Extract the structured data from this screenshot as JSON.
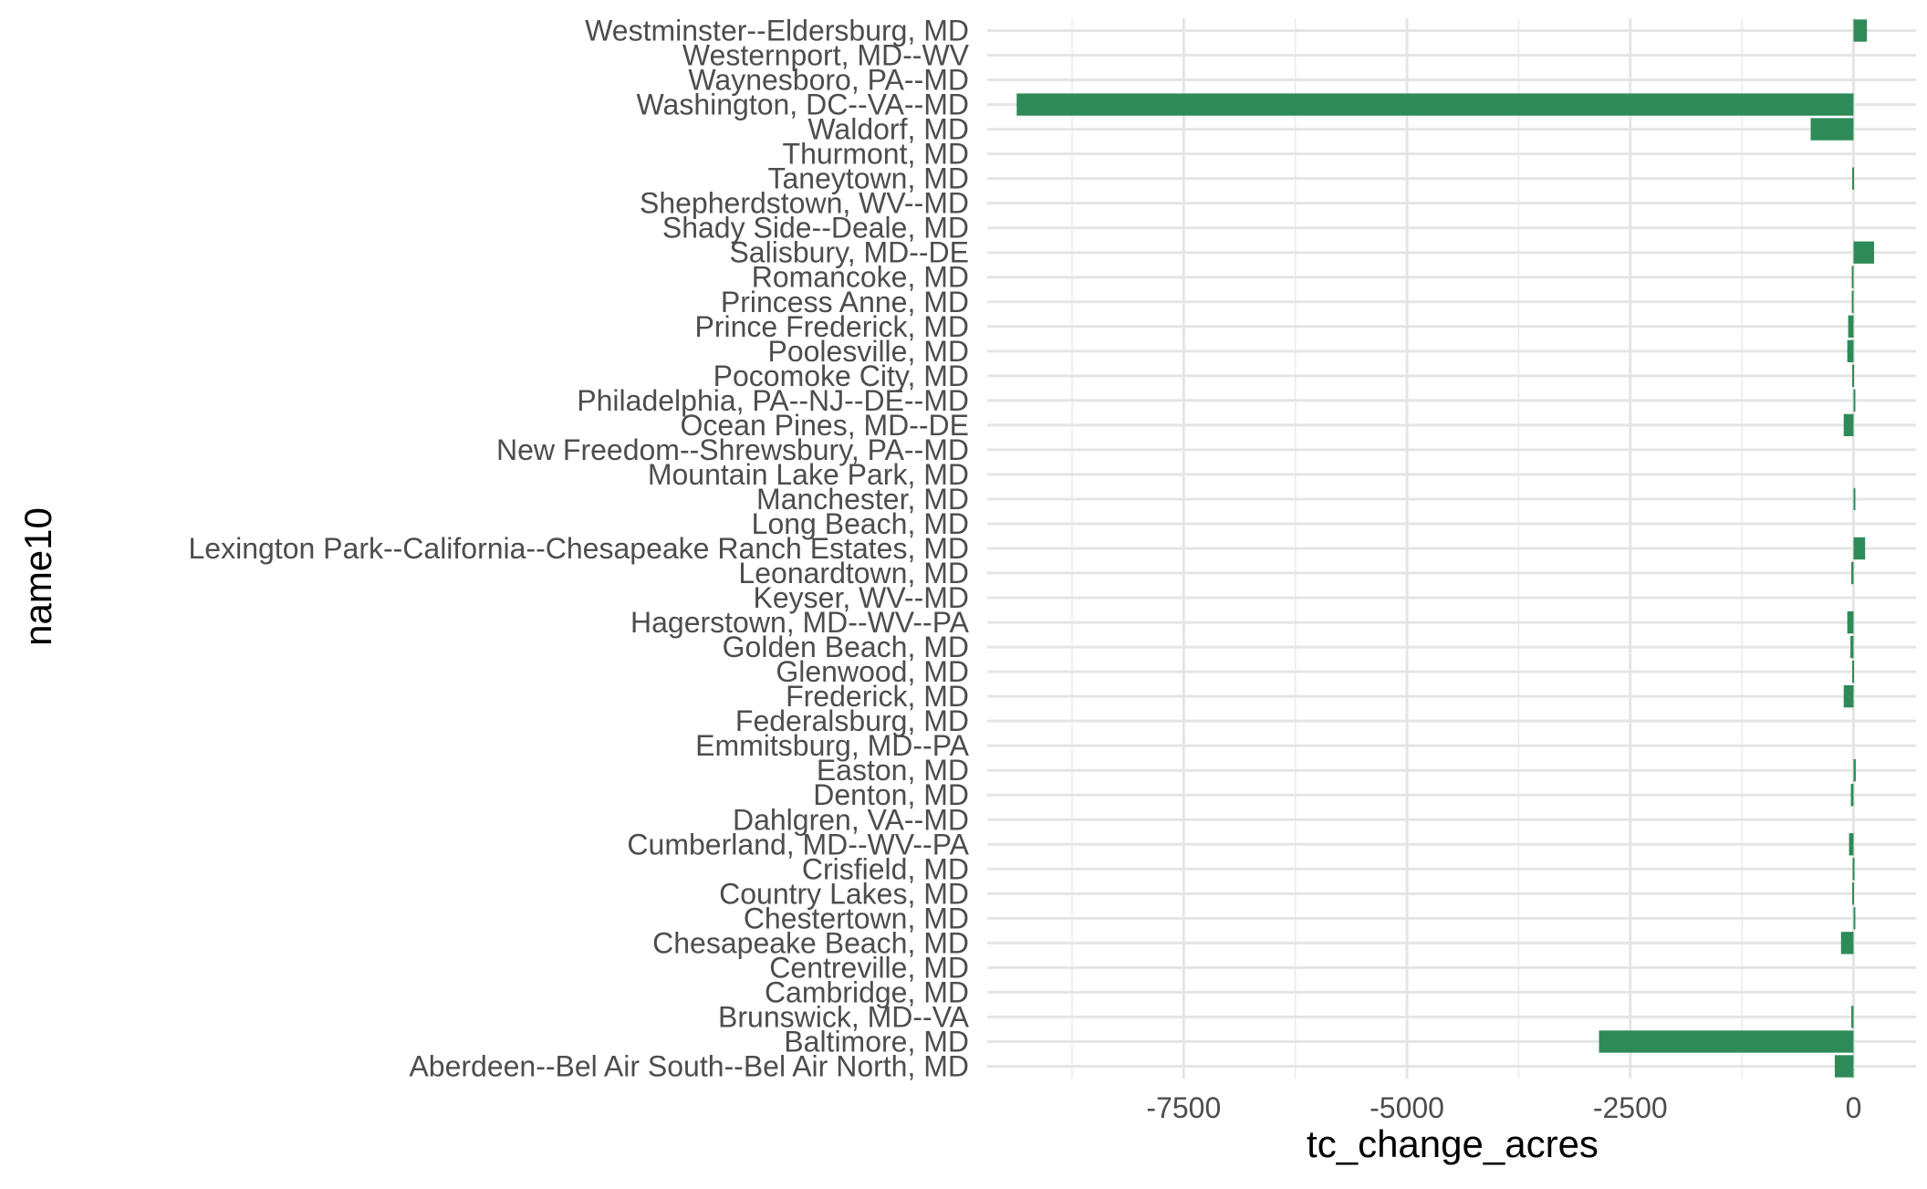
{
  "chart_data": {
    "type": "bar",
    "orientation": "horizontal",
    "xlabel": "tc_change_acres",
    "ylabel": "name10",
    "xlim": [
      -9700,
      700
    ],
    "x_ticks": [
      -7500,
      -5000,
      -2500,
      0
    ],
    "x_tick_labels": [
      "-7500",
      "-5000",
      "-2500",
      "0"
    ],
    "grid": true,
    "bar_color": "#2e8b57",
    "categories": [
      "Aberdeen--Bel Air South--Bel Air North, MD",
      "Baltimore, MD",
      "Brunswick, MD--VA",
      "Cambridge, MD",
      "Centreville, MD",
      "Chesapeake Beach, MD",
      "Chestertown, MD",
      "Country Lakes, MD",
      "Crisfield, MD",
      "Cumberland, MD--WV--PA",
      "Dahlgren, VA--MD",
      "Denton, MD",
      "Easton, MD",
      "Emmitsburg, MD--PA",
      "Federalsburg, MD",
      "Frederick, MD",
      "Glenwood, MD",
      "Golden Beach, MD",
      "Hagerstown, MD--WV--PA",
      "Keyser, WV--MD",
      "Leonardtown, MD",
      "Lexington Park--California--Chesapeake Ranch Estates, MD",
      "Long Beach, MD",
      "Manchester, MD",
      "Mountain Lake Park, MD",
      "New Freedom--Shrewsbury, PA--MD",
      "Ocean Pines, MD--DE",
      "Philadelphia, PA--NJ--DE--MD",
      "Pocomoke City, MD",
      "Poolesville, MD",
      "Prince Frederick, MD",
      "Princess Anne, MD",
      "Romancoke, MD",
      "Salisbury, MD--DE",
      "Shady Side--Deale, MD",
      "Shepherdstown, WV--MD",
      "Taneytown, MD",
      "Thurmont, MD",
      "Waldorf, MD",
      "Washington, DC--VA--MD",
      "Waynesboro, PA--MD",
      "Westernport, MD--WV",
      "Westminster--Eldersburg, MD"
    ],
    "values": [
      -210,
      -2850,
      -25,
      0,
      0,
      -140,
      15,
      -15,
      -10,
      -50,
      0,
      -30,
      25,
      0,
      0,
      -110,
      -15,
      -35,
      -70,
      0,
      -25,
      130,
      0,
      10,
      0,
      0,
      -110,
      10,
      -15,
      -70,
      -60,
      -20,
      -20,
      230,
      0,
      0,
      -15,
      0,
      -480,
      -9370,
      0,
      0,
      150
    ]
  }
}
